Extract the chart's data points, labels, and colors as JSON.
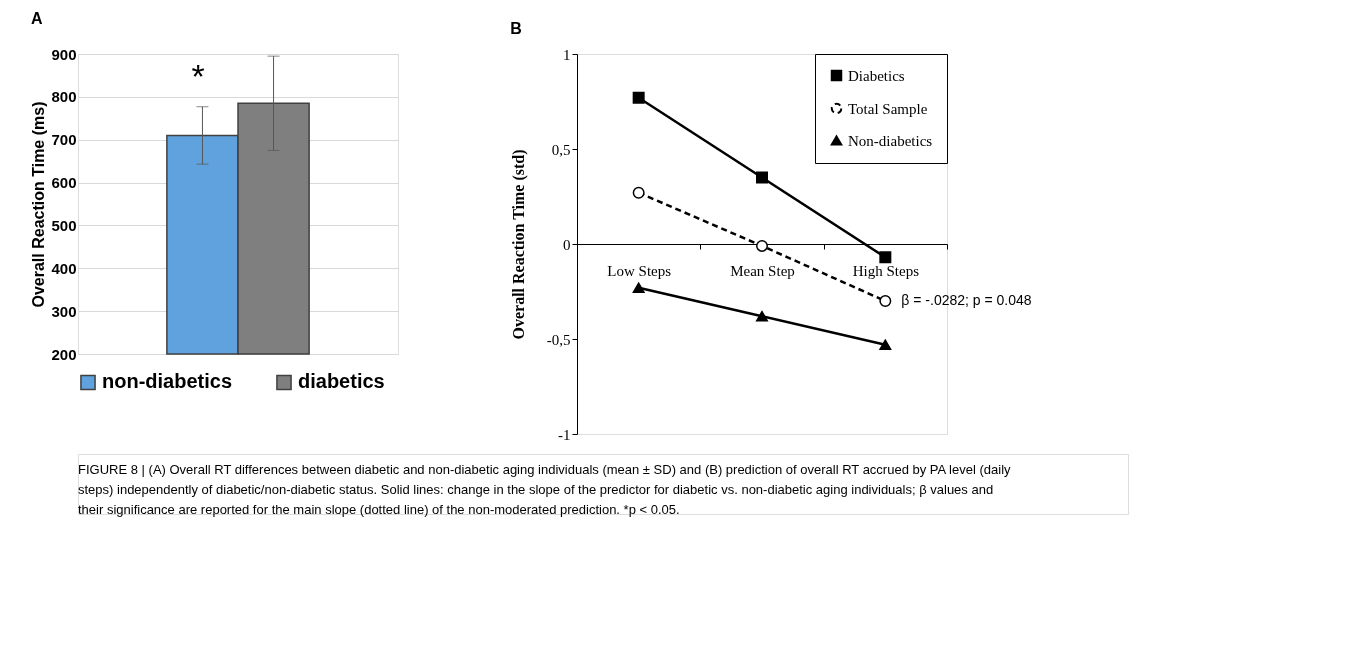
{
  "chart_data": [
    {
      "type": "bar",
      "title": "A",
      "ylabel": "Overall Reaction Time (ms)",
      "categories": [
        null
      ],
      "series": [
        {
          "name": "non-diabetics",
          "color": "#5fa2dd",
          "values": [
            710
          ],
          "errors": [
            67
          ]
        },
        {
          "name": "diabetics",
          "color": "#7f7f7f",
          "values": [
            785
          ],
          "errors": [
            110
          ]
        }
      ],
      "ylim": [
        200,
        900
      ],
      "yticks": [
        200,
        300,
        400,
        500,
        600,
        700,
        800,
        900
      ],
      "grid": "y",
      "legend": "bottom",
      "tick_labels": "y",
      "annotations": [
        "*"
      ]
    },
    {
      "type": "line",
      "title": "B",
      "ylabel": "Overall Reaction Time (std)",
      "categories": [
        "Low Steps",
        "Mean Step",
        "High Steps"
      ],
      "series": [
        {
          "name": "Diabetics",
          "color": "#000000",
          "values": [
            0.77,
            0.35,
            -0.07
          ],
          "marker": "square",
          "line_style": "solid"
        },
        {
          "name": "Total Sample",
          "color": "#000000",
          "values": [
            0.27,
            -0.01,
            -0.3
          ],
          "marker": "circle",
          "line_style": "dashed"
        },
        {
          "name": "Non-diabetics",
          "color": "#000000",
          "values": [
            -0.23,
            -0.38,
            -0.53
          ],
          "marker": "triangle",
          "line_style": "solid"
        }
      ],
      "ylim": [
        -1,
        1
      ],
      "yticks": [
        {
          "value": -1,
          "label": "-1"
        },
        {
          "value": -0.5,
          "label": "-0,5"
        },
        {
          "value": 0,
          "label": "0"
        },
        {
          "value": 0.5,
          "label": "0,5"
        },
        {
          "value": 1,
          "label": "1"
        }
      ],
      "legend": "top right",
      "grid": false,
      "annotations": [
        {
          "text": "β = -.0282; p = 0.048",
          "x": "High Steps",
          "y": -0.3
        },
        "FIGURE 8 | (A) Overall RT differences between diabetic and non-diabetic aging individuals (mean ± SD) and (B) prediction of overall RT accrued by PA level (daily steps) independently of diabetic/non-diabetic status. Solid lines: change in the slope of the predictor for diabetic vs. non-diabetic aging individuals; β values and their significance are reported for the main slope (dotted line) of the non-moderated prediction. *p < 0.05."
      ]
    }
  ]
}
